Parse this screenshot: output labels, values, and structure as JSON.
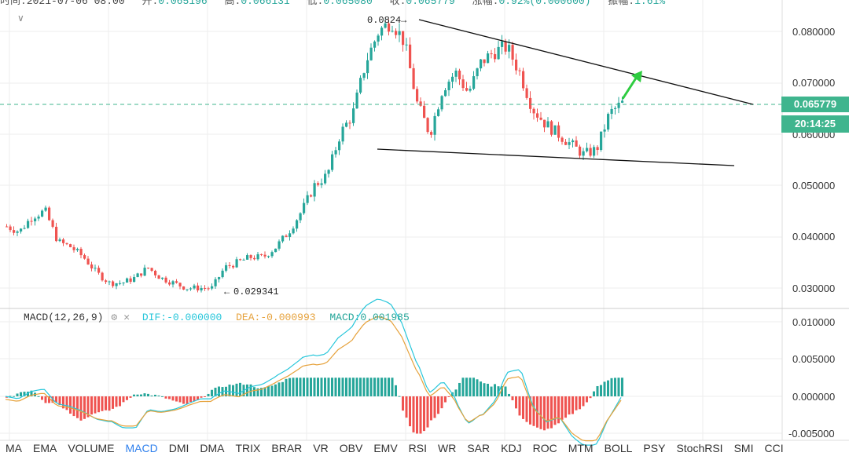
{
  "ohlc": {
    "time_label": "时间:",
    "time_value": "2021-07-06 08:00",
    "open_label": "开:",
    "open_value": "0.065196",
    "high_label": "高:",
    "high_value": "0.066131",
    "low_label": "低:",
    "low_value": "0.065080",
    "close_label": "收:",
    "close_value": "0.065779",
    "change_label": "涨幅:",
    "change_value": "0.92%(0.000600)",
    "amplitude_label": "振幅:",
    "amplitude_value": "1.61%"
  },
  "collapse_icon": "chevron-down-icon",
  "price_axis": {
    "ticks": [
      "0.080000",
      "0.070000",
      "0.060000",
      "0.050000",
      "0.040000",
      "0.030000"
    ]
  },
  "current_price": "0.065779",
  "countdown": "20:14:25",
  "annotations": {
    "high": "0.0824",
    "low": "0.029341"
  },
  "macd": {
    "title": "MACD(12,26,9)",
    "dif": "DIF:-0.000000",
    "dea": "DEA:-0.000993",
    "macd": "MACD:0.001985",
    "axis_ticks": [
      "0.010000",
      "0.005000",
      "0.000000",
      "-0.005000"
    ],
    "colors": {
      "dif": "#26c6da",
      "dea": "#e6a23c",
      "up": "#26a69a",
      "down": "#ef5350"
    }
  },
  "indicators": [
    "MA",
    "EMA",
    "VOLUME",
    "MACD",
    "DMI",
    "DMA",
    "TRIX",
    "BRAR",
    "VR",
    "OBV",
    "EMV",
    "RSI",
    "WR",
    "SAR",
    "KDJ",
    "ROC",
    "MTM",
    "BOLL",
    "PSY",
    "StochRSI",
    "SMI",
    "CCI"
  ],
  "active_indicator": "MACD",
  "colors": {
    "up": "#26a69a",
    "down": "#ef5350",
    "accent": "#2f80ed",
    "price_tag": "#3fb58e"
  },
  "chart_data": {
    "type": "candlestick",
    "close_path": [
      0.042,
      0.041,
      0.044,
      0.045,
      0.039,
      0.038,
      0.036,
      0.033,
      0.031,
      0.031,
      0.032,
      0.034,
      0.032,
      0.031,
      0.03,
      0.03,
      0.03,
      0.034,
      0.035,
      0.036,
      0.036,
      0.038,
      0.041,
      0.045,
      0.05,
      0.052,
      0.06,
      0.064,
      0.074,
      0.08,
      0.082,
      0.078,
      0.066,
      0.06,
      0.069,
      0.072,
      0.068,
      0.074,
      0.076,
      0.077,
      0.072,
      0.065,
      0.062,
      0.06,
      0.058,
      0.056,
      0.057,
      0.064,
      0.066
    ],
    "high_annotation": 0.0824,
    "low_annotation": 0.029341,
    "ylim": [
      0.026,
      0.085
    ]
  }
}
